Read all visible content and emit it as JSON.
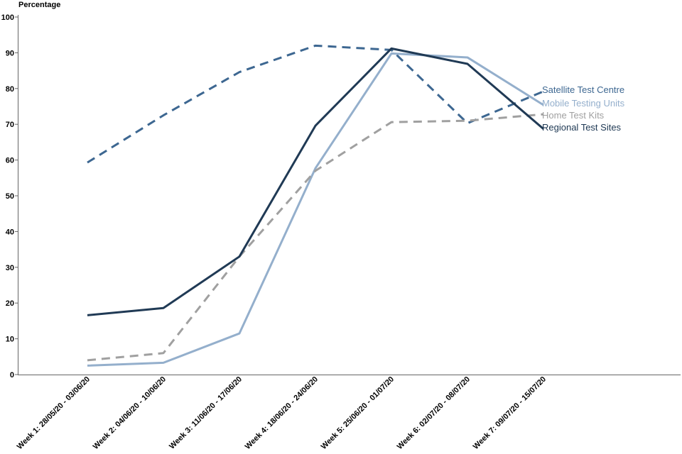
{
  "chart_data": {
    "type": "line",
    "ylabel": "Percentage",
    "ylim": [
      0,
      100
    ],
    "yticks": [
      0,
      10,
      20,
      30,
      40,
      50,
      60,
      70,
      80,
      90,
      100
    ],
    "categories": [
      "Week 1: 28/05/20 - 03/06/20",
      "Week 2: 04/06/20 - 10/06/20",
      "Week 3: 11/06/20 - 17/06/20",
      "Week 4: 18/06/20 - 24/06/20",
      "Week 5: 25/06/20 - 01/07/20",
      "Week 6: 02/07/20 - 08/07/20",
      "Week 7: 09/07/20 - 15/07/20"
    ],
    "grid": false,
    "legend": "end-of-line labels",
    "series": [
      {
        "name": "Satellite Test Centre",
        "values": [
          59.3,
          72.5,
          84.6,
          92.0,
          90.8,
          70.3,
          79.2
        ],
        "color": "#3d6791",
        "dash": true
      },
      {
        "name": "Mobile Testing Units",
        "values": [
          2.5,
          3.3,
          11.5,
          57.7,
          89.8,
          88.7,
          75.4
        ],
        "color": "#94afcc",
        "dash": false
      },
      {
        "name": "Home Test Kits",
        "values": [
          4.0,
          6.0,
          33.0,
          57.0,
          70.6,
          71.0,
          72.8
        ],
        "color": "#a0a0a0",
        "dash": true
      },
      {
        "name": "Regional Test Sites",
        "values": [
          16.6,
          18.6,
          33.0,
          69.6,
          91.2,
          86.9,
          68.7
        ],
        "color": "#203a55",
        "dash": false
      }
    ]
  }
}
